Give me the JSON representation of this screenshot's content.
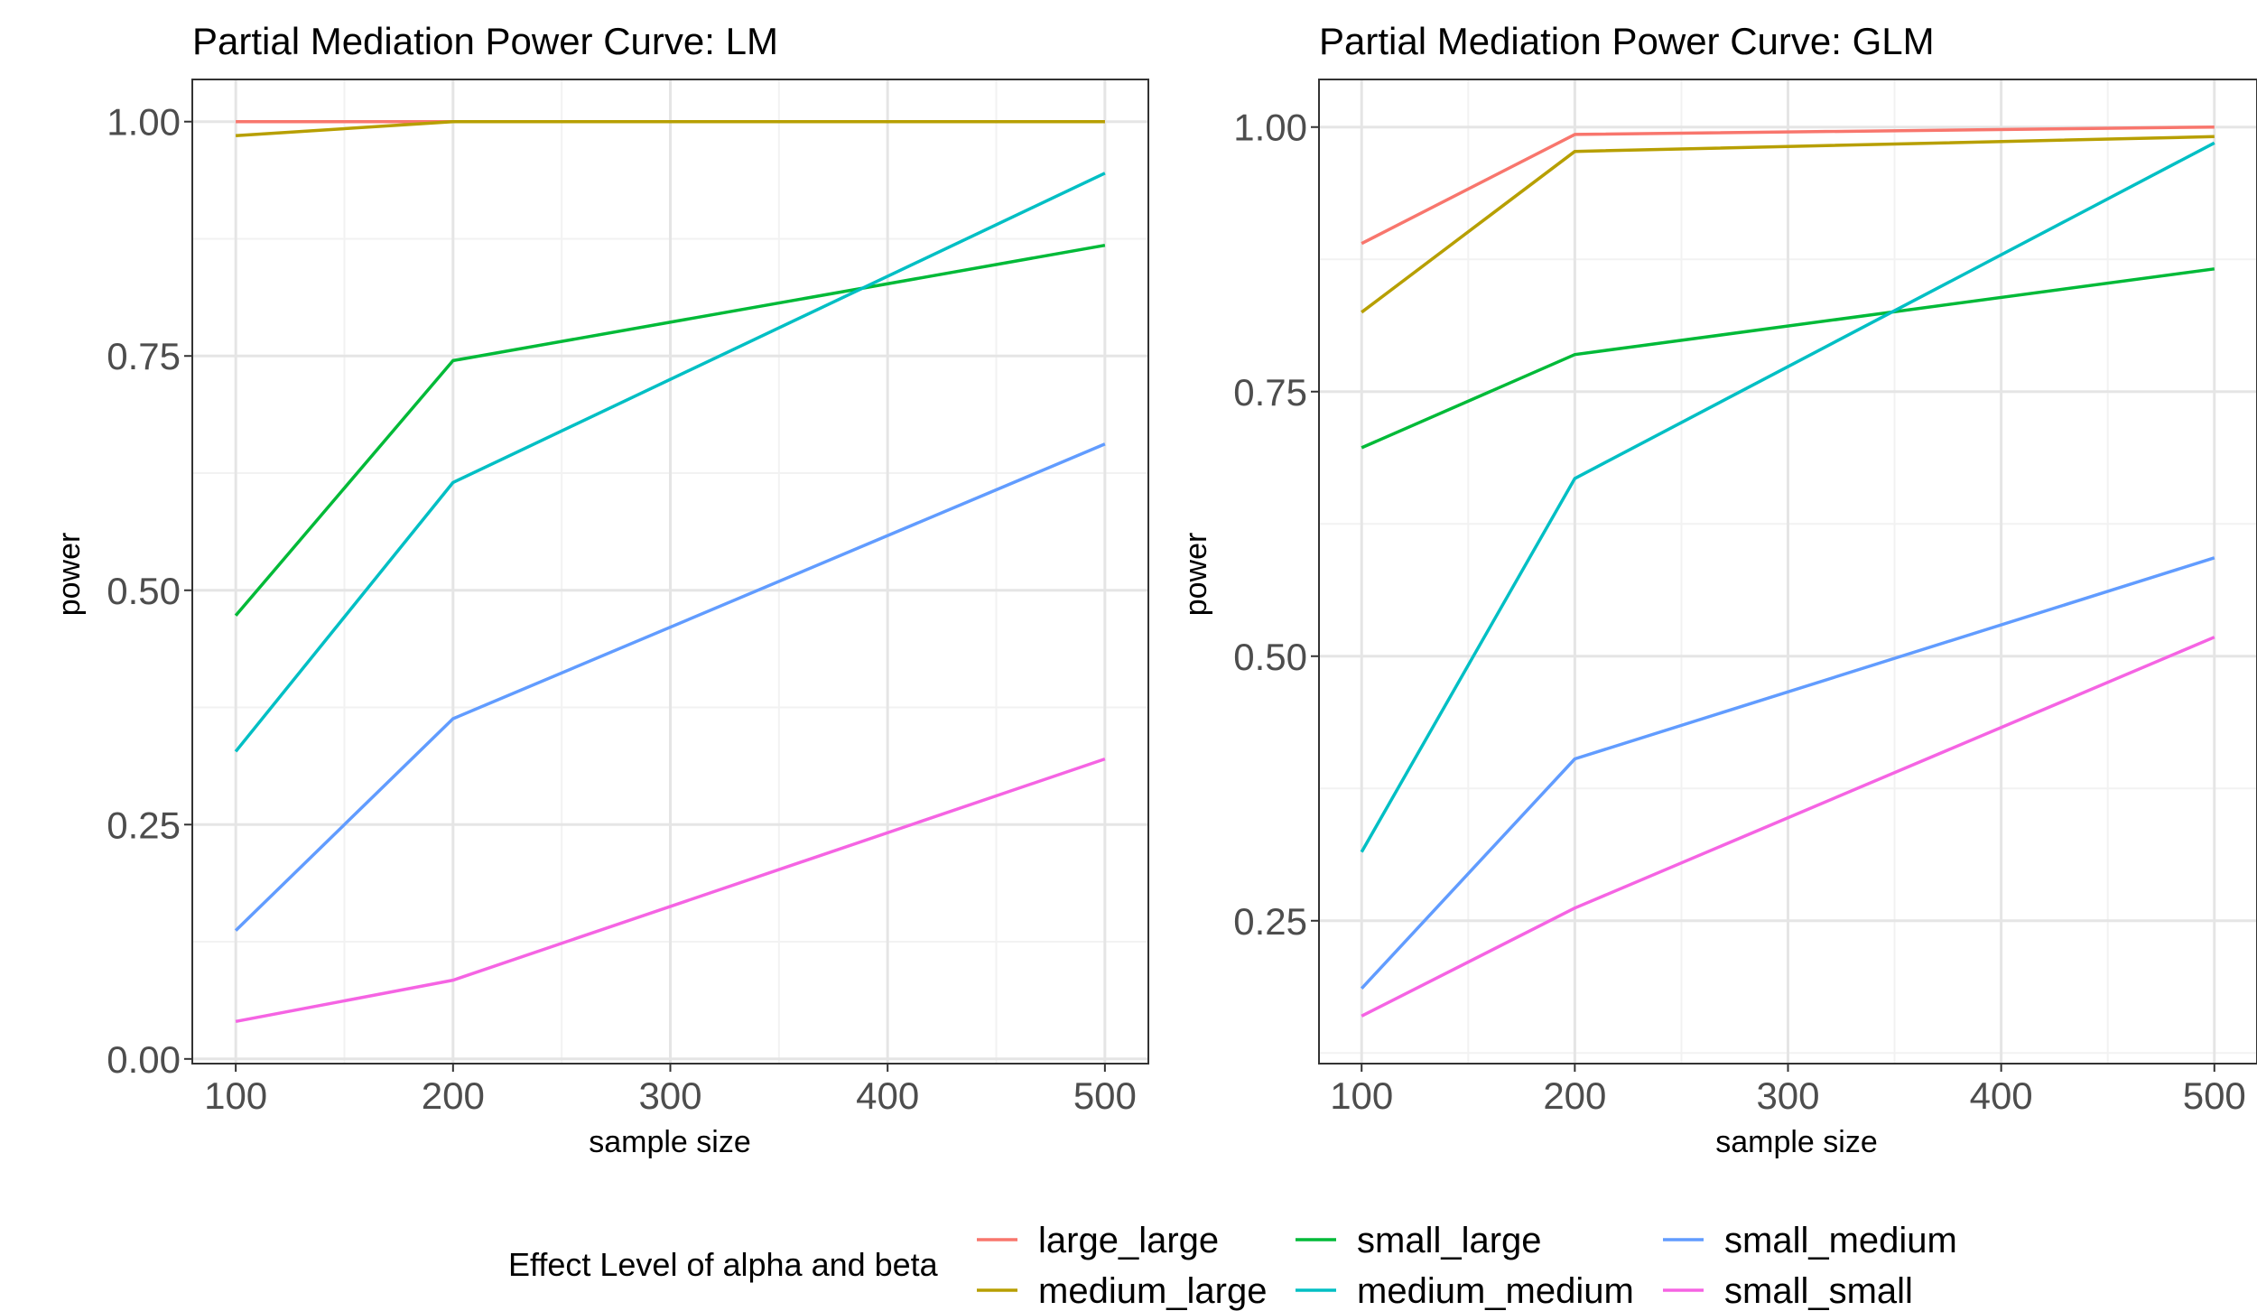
{
  "chart_data": [
    {
      "type": "line",
      "title": "Partial Mediation Power Curve: LM",
      "xlabel": "sample size",
      "ylabel": "power",
      "x": [
        100,
        200,
        500
      ],
      "xlim": [
        80,
        520
      ],
      "ylim": [
        -0.005,
        1.045
      ],
      "x_ticks": [
        100,
        200,
        300,
        400,
        500
      ],
      "x_tick_labels": [
        "100",
        "200",
        "300",
        "400",
        "500"
      ],
      "y_ticks": [
        0.0,
        0.25,
        0.5,
        0.75,
        1.0
      ],
      "y_tick_labels": [
        "0.00",
        "0.25",
        "0.50",
        "0.75",
        "1.00"
      ],
      "grid": true,
      "series": [
        {
          "name": "large_large",
          "color": "#F8766D",
          "values": [
            1.0,
            1.0,
            1.0
          ]
        },
        {
          "name": "medium_large",
          "color": "#B79F00",
          "values": [
            0.985,
            1.0,
            1.0
          ]
        },
        {
          "name": "small_large",
          "color": "#00BA38",
          "values": [
            0.473,
            0.745,
            0.868
          ]
        },
        {
          "name": "medium_medium",
          "color": "#00BFC4",
          "values": [
            0.328,
            0.615,
            0.945
          ]
        },
        {
          "name": "small_medium",
          "color": "#619CFF",
          "values": [
            0.137,
            0.363,
            0.656
          ]
        },
        {
          "name": "small_small",
          "color": "#F564E3",
          "values": [
            0.04,
            0.084,
            0.32
          ]
        }
      ]
    },
    {
      "type": "line",
      "title": "Partial Mediation Power Curve: GLM",
      "xlabel": "sample size",
      "ylabel": "power",
      "x": [
        100,
        200,
        500
      ],
      "xlim": [
        80,
        520
      ],
      "ylim": [
        0.115,
        1.045
      ],
      "x_ticks": [
        100,
        200,
        300,
        400,
        500
      ],
      "x_tick_labels": [
        "100",
        "200",
        "300",
        "400",
        "500"
      ],
      "y_ticks": [
        0.25,
        0.5,
        0.75,
        1.0
      ],
      "y_tick_labels": [
        "0.25",
        "0.50",
        "0.75",
        "1.00"
      ],
      "grid": true,
      "series": [
        {
          "name": "large_large",
          "color": "#F8766D",
          "values": [
            0.89,
            0.993,
            1.0
          ]
        },
        {
          "name": "medium_large",
          "color": "#B79F00",
          "values": [
            0.825,
            0.977,
            0.991
          ]
        },
        {
          "name": "small_large",
          "color": "#00BA38",
          "values": [
            0.697,
            0.785,
            0.866
          ]
        },
        {
          "name": "medium_medium",
          "color": "#00BFC4",
          "values": [
            0.315,
            0.668,
            0.985
          ]
        },
        {
          "name": "small_medium",
          "color": "#619CFF",
          "values": [
            0.186,
            0.403,
            0.593
          ]
        },
        {
          "name": "small_small",
          "color": "#F564E3",
          "values": [
            0.16,
            0.262,
            0.518
          ]
        }
      ]
    }
  ],
  "legend": {
    "title": "Effect Level of alpha and beta",
    "position": "bottom",
    "items": [
      {
        "label": "large_large",
        "color": "#F8766D"
      },
      {
        "label": "medium_large",
        "color": "#B79F00"
      },
      {
        "label": "small_large",
        "color": "#00BA38"
      },
      {
        "label": "medium_medium",
        "color": "#00BFC4"
      },
      {
        "label": "small_medium",
        "color": "#619CFF"
      },
      {
        "label": "small_small",
        "color": "#F564E3"
      }
    ]
  }
}
